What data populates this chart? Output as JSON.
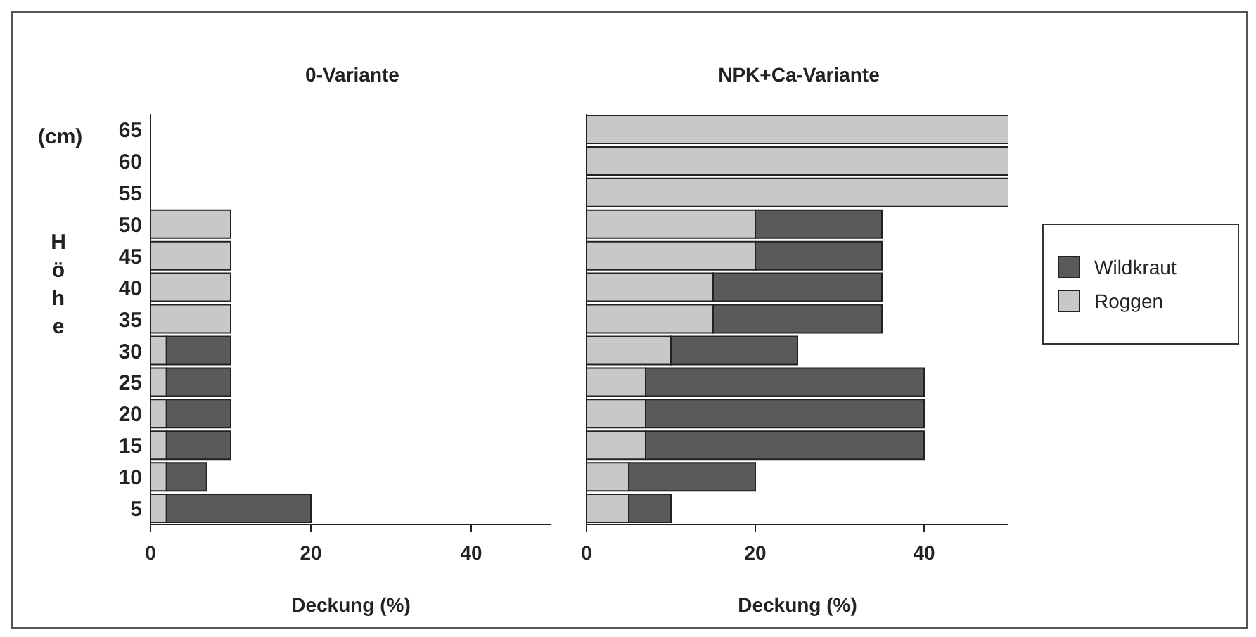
{
  "chart_data": [
    {
      "type": "bar",
      "orientation": "horizontal",
      "stacked": true,
      "title": "0-Variante",
      "xlabel": "Deckung (%)",
      "ylabel": "Höhe",
      "annotations": [
        "(cm)"
      ],
      "categories": [
        "65",
        "60",
        "55",
        "50",
        "45",
        "40",
        "35",
        "30",
        "25",
        "20",
        "15",
        "10",
        "5"
      ],
      "xlim": [
        0,
        50
      ],
      "xticks": [
        0,
        20,
        40
      ],
      "series": [
        {
          "color": "#c8c8c8",
          "values": [
            null,
            null,
            null,
            10,
            10,
            10,
            10,
            2,
            2,
            2,
            2,
            2,
            2
          ]
        },
        {
          "color": "#5a5a5a",
          "values": [
            null,
            null,
            null,
            null,
            null,
            null,
            null,
            8,
            8,
            8,
            8,
            5,
            18
          ]
        }
      ]
    },
    {
      "type": "bar",
      "orientation": "horizontal",
      "stacked": true,
      "title": "NPK+Ca-Variante",
      "xlabel": "Deckung (%)",
      "categories": [
        "65",
        "60",
        "55",
        "50",
        "45",
        "40",
        "35",
        "30",
        "25",
        "20",
        "15",
        "10",
        "5"
      ],
      "xlim": [
        0,
        50
      ],
      "xticks": [
        0,
        20,
        40
      ],
      "tick_labels": "x",
      "legend": "right",
      "series": [
        {
          "name": "Roggen",
          "color": "#c8c8c8",
          "values": [
            50,
            50,
            50,
            20,
            20,
            15,
            15,
            10,
            7,
            7,
            7,
            5,
            5
          ]
        },
        {
          "name": "Wildkraut",
          "color": "#5a5a5a",
          "values": [
            null,
            null,
            null,
            15,
            15,
            20,
            20,
            15,
            33,
            33,
            33,
            15,
            5
          ]
        }
      ]
    }
  ]
}
